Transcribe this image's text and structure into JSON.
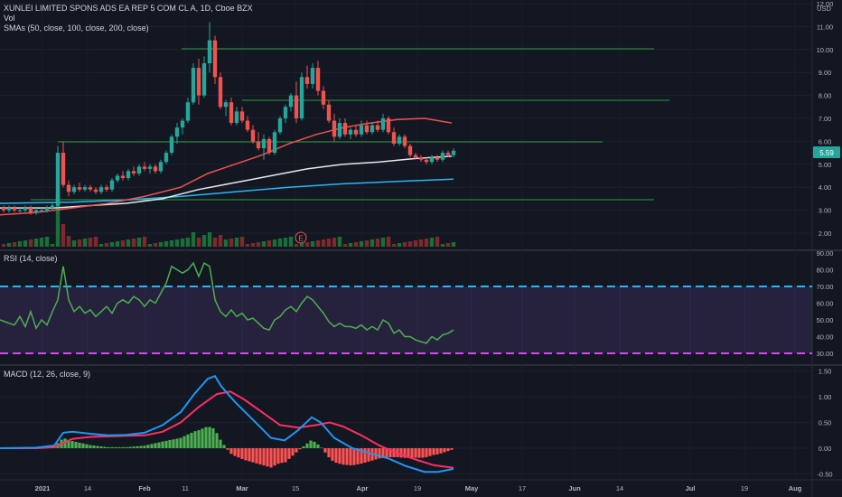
{
  "header": {
    "title": "XUNLEI LIMITED SPONS ADS EA REP 5 COM CL A, 1D, Cboe BZX",
    "volume_label": "Vol",
    "sma_label": "SMAs (50, close, 100, close, 200, close)"
  },
  "price_axis": {
    "currency": "USD",
    "ticks": [
      "12.00",
      "11.00",
      "10.00",
      "9.00",
      "8.00",
      "7.00",
      "6.00",
      "5.00",
      "4.00",
      "3.00",
      "2.00"
    ],
    "current_price": "5.59"
  },
  "rsi_panel": {
    "label": "RSI (14, close)",
    "ticks": [
      "90.00",
      "80.00",
      "70.00",
      "60.00",
      "50.00",
      "40.00",
      "30.00"
    ]
  },
  "macd_panel": {
    "label": "MACD (12, 26, close, 9)",
    "ticks": [
      "1.50",
      "1.00",
      "0.50",
      "0.00",
      "-0.50"
    ]
  },
  "time_axis": {
    "labels": [
      "2021",
      "14",
      "Feb",
      "11",
      "Mar",
      "15",
      "Apr",
      "19",
      "May",
      "17",
      "Jun",
      "14",
      "Jul",
      "19",
      "Aug"
    ]
  },
  "earnings_marker": "E",
  "colors": {
    "background": "#131722",
    "up": "#26a69a",
    "down": "#ef5350",
    "sma50": "#f05050",
    "sma100": "#e8e8e8",
    "sma200": "#29b6f6",
    "hline": "#2e9e3a",
    "rsi_line": "#4caf50",
    "rsi_band": "#7e57c2",
    "rsi_upper": "#29b6f6",
    "rsi_lower": "#e040fb",
    "macd_line": "#2196f3",
    "signal_line": "#ff2e63",
    "hist_up": "#4caf50",
    "hist_down": "#ff5252"
  },
  "chart_data": [
    {
      "type": "candlestick",
      "title": "XUNLEI LIMITED SPONS ADS EA REP 5 COM CL A, 1D, Cboe BZX",
      "ylim": [
        1.5,
        12
      ],
      "dates": [
        "2021-01-04",
        "2021-01-11",
        "2021-01-19",
        "2021-01-25",
        "2021-02-01",
        "2021-02-08",
        "2021-02-16",
        "2021-02-22",
        "2021-03-01",
        "2021-03-08",
        "2021-03-15",
        "2021-03-22",
        "2021-03-29",
        "2021-04-05",
        "2021-04-12",
        "2021-04-19",
        "2021-04-26"
      ],
      "close": [
        3.0,
        4.0,
        3.9,
        4.4,
        5.4,
        8.2,
        10.0,
        6.5,
        5.4,
        7.2,
        9.0,
        6.6,
        6.4,
        6.7,
        5.4,
        5.1,
        5.59
      ],
      "horizontal_levels": [
        10.0,
        7.8,
        6.0,
        3.5
      ],
      "sma50_last": 6.8,
      "sma100_last": 5.4,
      "sma200_last": 4.4,
      "current_price": 5.59
    },
    {
      "type": "line",
      "title": "RSI (14, close)",
      "ylim": [
        25,
        92
      ],
      "levels": [
        70,
        30
      ],
      "values": [
        50,
        47,
        82,
        57,
        55,
        60,
        66,
        58,
        64,
        86,
        77,
        55,
        45,
        58,
        65,
        48,
        46,
        44,
        40,
        36,
        42,
        44
      ]
    },
    {
      "type": "line",
      "title": "MACD (12, 26, close, 9)",
      "ylim": [
        -0.6,
        1.6
      ],
      "macd": [
        0.0,
        0.0,
        0.3,
        0.25,
        0.35,
        0.6,
        1.4,
        0.9,
        0.1,
        0.6,
        0.0,
        -0.3,
        -0.45,
        -0.4
      ],
      "signal": [
        0.0,
        0.0,
        0.15,
        0.25,
        0.3,
        0.45,
        1.1,
        0.9,
        0.3,
        0.5,
        0.2,
        -0.1,
        -0.35,
        -0.4
      ]
    }
  ]
}
